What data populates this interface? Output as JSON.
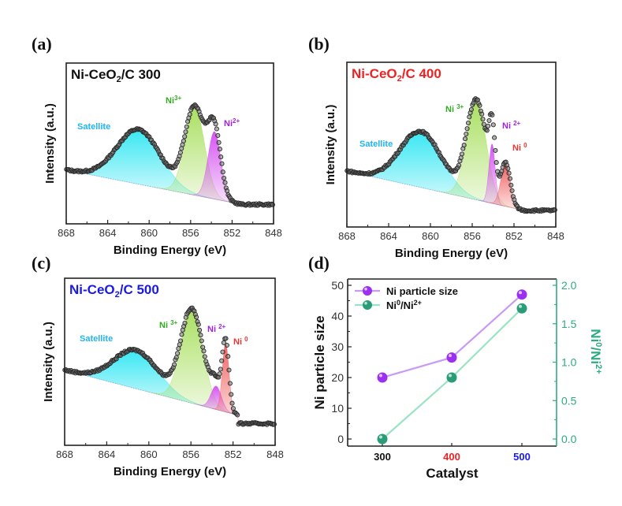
{
  "colors": {
    "satellite": "#2ee6f2",
    "ni3": "#a6de5a",
    "ni2": "#d44cf0",
    "ni0": "#f05a5a",
    "data_points": "#3a3a3a",
    "size_series": "#9b30f0",
    "size_line": "#c79af5",
    "ratio_series": "#2a9d78",
    "ratio_line": "#9ae3c4",
    "right_axis": "#2eaa80",
    "title_300": "#111111",
    "title_400": "#ee2222",
    "title_500": "#1a1ae6",
    "label_satellite": "#22b4f0",
    "label_ni3": "#33aa22",
    "label_ni2": "#a020e0",
    "label_ni0": "#ee3333"
  },
  "chart_data": [
    {
      "panel": "(a)",
      "type": "area",
      "title": "Ni-CeO2/C 300",
      "title_parts": {
        "main": "Ni-CeO",
        "sub": "2",
        "rest": "/C 300"
      },
      "xlabel": "Binding Energy (eV)",
      "ylabel": "Intensity (a.u.)",
      "xlim": [
        868,
        848
      ],
      "xticks": [
        "868",
        "864",
        "860",
        "856",
        "852",
        "848"
      ],
      "ylim": [
        0,
        1
      ],
      "background": {
        "start": [
          868,
          0.335
        ],
        "end": [
          851,
          0.12
        ],
        "plateau": 0.12
      },
      "components": [
        {
          "name": "Satellite",
          "center": 861.0,
          "height": 0.34,
          "width": 2.1
        },
        {
          "name": "Ni3+",
          "center": 855.6,
          "height": 0.545,
          "width": 0.95
        },
        {
          "name": "Ni2+",
          "center": 853.7,
          "height": 0.42,
          "width": 0.62
        }
      ],
      "labels": [
        {
          "text": "Satellite",
          "sup": "",
          "series": "Satellite"
        },
        {
          "text": "Ni",
          "sup": "3+",
          "series": "Ni3+"
        },
        {
          "text": "Ni",
          "sup": "2+",
          "series": "Ni2+"
        }
      ]
    },
    {
      "panel": "(b)",
      "type": "area",
      "title": "Ni-CeO2/C 400",
      "title_parts": {
        "main": "Ni-CeO",
        "sub": "2",
        "rest": "/C 400"
      },
      "xlabel": "Binding Energy (eV)",
      "ylabel": "Intensity (a.u.)",
      "xlim": [
        868,
        848
      ],
      "xticks": [
        "868",
        "864",
        "860",
        "856",
        "852",
        "848"
      ],
      "ylim": [
        0,
        1
      ],
      "background": {
        "start": [
          868,
          0.34
        ],
        "end": [
          851,
          0.1
        ],
        "plateau": 0.1
      },
      "components": [
        {
          "name": "Satellite",
          "center": 860.9,
          "height": 0.34,
          "width": 2.0
        },
        {
          "name": "Ni3+",
          "center": 855.6,
          "height": 0.6,
          "width": 0.95
        },
        {
          "name": "Ni2+",
          "center": 854.1,
          "height": 0.36,
          "width": 0.3
        },
        {
          "name": "Ni0",
          "center": 852.8,
          "height": 0.26,
          "width": 0.45
        }
      ],
      "labels": [
        {
          "text": "Satellite",
          "sup": "",
          "series": "Satellite"
        },
        {
          "text": "Ni ",
          "sup": "3+",
          "series": "Ni3+"
        },
        {
          "text": "Ni ",
          "sup": "2+",
          "series": "Ni2+"
        },
        {
          "text": "Ni ",
          "sup": "0",
          "series": "Ni0"
        }
      ]
    },
    {
      "panel": "(c)",
      "type": "area",
      "title": "Ni-CeO2/C 500",
      "title_parts": {
        "main": "Ni-CeO",
        "sub": "2",
        "rest": "/C 500"
      },
      "xlabel": "Binding Energy (eV)",
      "ylabel": "Intensity (a.u.)",
      "xlim": [
        868,
        848
      ],
      "xticks": [
        "868",
        "864",
        "860",
        "856",
        "852",
        "848"
      ],
      "ylim": [
        0,
        1
      ],
      "background": {
        "start": [
          868,
          0.45
        ],
        "end": [
          851.5,
          0.18
        ],
        "plateau": 0.13
      },
      "components": [
        {
          "name": "Satellite",
          "center": 861.2,
          "height": 0.23,
          "width": 2.1
        },
        {
          "name": "Ni3+",
          "center": 855.9,
          "height": 0.56,
          "width": 1.05
        },
        {
          "name": "Ni2+",
          "center": 853.6,
          "height": 0.14,
          "width": 0.5
        },
        {
          "name": "Ni0",
          "center": 852.7,
          "height": 0.41,
          "width": 0.32
        }
      ],
      "labels": [
        {
          "text": "Satellite",
          "sup": "",
          "series": "Satellite"
        },
        {
          "text": "Ni ",
          "sup": "3+",
          "series": "Ni3+"
        },
        {
          "text": "Ni ",
          "sup": "2+",
          "series": "Ni2+"
        },
        {
          "text": "Ni ",
          "sup": "0",
          "series": "Ni0"
        }
      ]
    },
    {
      "panel": "(d)",
      "type": "line",
      "xlabel": "Catalyst",
      "ylabel": "Ni particle size",
      "y2label": "Ni0/Ni2+",
      "categories": [
        "300",
        "400",
        "500"
      ],
      "category_colors": [
        "#111111",
        "#ee2222",
        "#1a1ae6"
      ],
      "ylim": [
        0,
        50
      ],
      "yticks": [
        "0",
        "10",
        "20",
        "30",
        "40",
        "50"
      ],
      "y2lim": [
        0,
        2.0
      ],
      "y2ticks": [
        "0.0",
        "0.5",
        "1.0",
        "1.5",
        "2.0"
      ],
      "series": [
        {
          "name": "Ni particle size",
          "axis": "left",
          "values": [
            20,
            26.5,
            47
          ]
        },
        {
          "name": "Ni0/Ni2+",
          "axis": "right",
          "values": [
            0.0,
            0.8,
            1.7
          ]
        }
      ],
      "legend": {
        "position": "top-left",
        "entries": [
          {
            "text": "Ni particle size",
            "sup1": "",
            "mid": "",
            "sup2": ""
          },
          {
            "text": "Ni",
            "sup1": "0",
            "mid": "/Ni",
            "sup2": "2+"
          }
        ]
      }
    }
  ]
}
